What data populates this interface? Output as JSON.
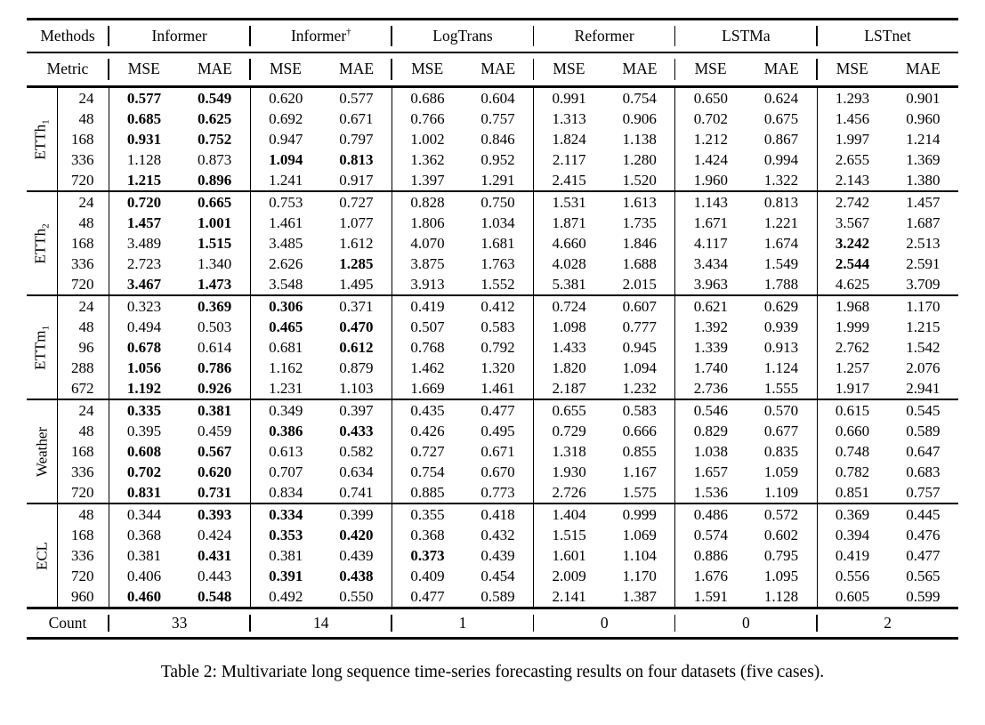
{
  "page": {
    "background": "#ffffff",
    "text_color": "#000000"
  },
  "table": {
    "caption": "Table 2: Multivariate long sequence time-series forecasting results on four datasets (five cases).",
    "header": {
      "methods_label": "Methods",
      "metric_label": "Metric",
      "metrics": [
        "MSE",
        "MAE"
      ],
      "methods": [
        {
          "name": "Informer",
          "sup": ""
        },
        {
          "name": "Informer",
          "sup": "†"
        },
        {
          "name": "LogTrans",
          "sup": ""
        },
        {
          "name": "Reformer",
          "sup": ""
        },
        {
          "name": "LSTMa",
          "sup": ""
        },
        {
          "name": "LSTnet",
          "sup": ""
        }
      ]
    },
    "groups": [
      {
        "dataset": "ETTh",
        "sub": "1",
        "rows": [
          {
            "horizon": "24",
            "values": [
              "0.577",
              "0.549",
              "0.620",
              "0.577",
              "0.686",
              "0.604",
              "0.991",
              "0.754",
              "0.650",
              "0.624",
              "1.293",
              "0.901"
            ],
            "bold": [
              0,
              1
            ]
          },
          {
            "horizon": "48",
            "values": [
              "0.685",
              "0.625",
              "0.692",
              "0.671",
              "0.766",
              "0.757",
              "1.313",
              "0.906",
              "0.702",
              "0.675",
              "1.456",
              "0.960"
            ],
            "bold": [
              0,
              1
            ]
          },
          {
            "horizon": "168",
            "values": [
              "0.931",
              "0.752",
              "0.947",
              "0.797",
              "1.002",
              "0.846",
              "1.824",
              "1.138",
              "1.212",
              "0.867",
              "1.997",
              "1.214"
            ],
            "bold": [
              0,
              1
            ]
          },
          {
            "horizon": "336",
            "values": [
              "1.128",
              "0.873",
              "1.094",
              "0.813",
              "1.362",
              "0.952",
              "2.117",
              "1.280",
              "1.424",
              "0.994",
              "2.655",
              "1.369"
            ],
            "bold": [
              2,
              3
            ]
          },
          {
            "horizon": "720",
            "values": [
              "1.215",
              "0.896",
              "1.241",
              "0.917",
              "1.397",
              "1.291",
              "2.415",
              "1.520",
              "1.960",
              "1.322",
              "2.143",
              "1.380"
            ],
            "bold": [
              0,
              1
            ]
          }
        ]
      },
      {
        "dataset": "ETTh",
        "sub": "2",
        "rows": [
          {
            "horizon": "24",
            "values": [
              "0.720",
              "0.665",
              "0.753",
              "0.727",
              "0.828",
              "0.750",
              "1.531",
              "1.613",
              "1.143",
              "0.813",
              "2.742",
              "1.457"
            ],
            "bold": [
              0,
              1
            ]
          },
          {
            "horizon": "48",
            "values": [
              "1.457",
              "1.001",
              "1.461",
              "1.077",
              "1.806",
              "1.034",
              "1.871",
              "1.735",
              "1.671",
              "1.221",
              "3.567",
              "1.687"
            ],
            "bold": [
              0,
              1
            ]
          },
          {
            "horizon": "168",
            "values": [
              "3.489",
              "1.515",
              "3.485",
              "1.612",
              "4.070",
              "1.681",
              "4.660",
              "1.846",
              "4.117",
              "1.674",
              "3.242",
              "2.513"
            ],
            "bold": [
              1,
              10
            ]
          },
          {
            "horizon": "336",
            "values": [
              "2.723",
              "1.340",
              "2.626",
              "1.285",
              "3.875",
              "1.763",
              "4.028",
              "1.688",
              "3.434",
              "1.549",
              "2.544",
              "2.591"
            ],
            "bold": [
              3,
              10
            ]
          },
          {
            "horizon": "720",
            "values": [
              "3.467",
              "1.473",
              "3.548",
              "1.495",
              "3.913",
              "1.552",
              "5.381",
              "2.015",
              "3.963",
              "1.788",
              "4.625",
              "3.709"
            ],
            "bold": [
              0,
              1
            ]
          }
        ]
      },
      {
        "dataset": "ETTm",
        "sub": "1",
        "rows": [
          {
            "horizon": "24",
            "values": [
              "0.323",
              "0.369",
              "0.306",
              "0.371",
              "0.419",
              "0.412",
              "0.724",
              "0.607",
              "0.621",
              "0.629",
              "1.968",
              "1.170"
            ],
            "bold": [
              1,
              2
            ]
          },
          {
            "horizon": "48",
            "values": [
              "0.494",
              "0.503",
              "0.465",
              "0.470",
              "0.507",
              "0.583",
              "1.098",
              "0.777",
              "1.392",
              "0.939",
              "1.999",
              "1.215"
            ],
            "bold": [
              2,
              3
            ]
          },
          {
            "horizon": "96",
            "values": [
              "0.678",
              "0.614",
              "0.681",
              "0.612",
              "0.768",
              "0.792",
              "1.433",
              "0.945",
              "1.339",
              "0.913",
              "2.762",
              "1.542"
            ],
            "bold": [
              0,
              3
            ]
          },
          {
            "horizon": "288",
            "values": [
              "1.056",
              "0.786",
              "1.162",
              "0.879",
              "1.462",
              "1.320",
              "1.820",
              "1.094",
              "1.740",
              "1.124",
              "1.257",
              "2.076"
            ],
            "bold": [
              0,
              1
            ]
          },
          {
            "horizon": "672",
            "values": [
              "1.192",
              "0.926",
              "1.231",
              "1.103",
              "1.669",
              "1.461",
              "2.187",
              "1.232",
              "2.736",
              "1.555",
              "1.917",
              "2.941"
            ],
            "bold": [
              0,
              1
            ]
          }
        ]
      },
      {
        "dataset": "Weather",
        "sub": "",
        "rows": [
          {
            "horizon": "24",
            "values": [
              "0.335",
              "0.381",
              "0.349",
              "0.397",
              "0.435",
              "0.477",
              "0.655",
              "0.583",
              "0.546",
              "0.570",
              "0.615",
              "0.545"
            ],
            "bold": [
              0,
              1
            ]
          },
          {
            "horizon": "48",
            "values": [
              "0.395",
              "0.459",
              "0.386",
              "0.433",
              "0.426",
              "0.495",
              "0.729",
              "0.666",
              "0.829",
              "0.677",
              "0.660",
              "0.589"
            ],
            "bold": [
              2,
              3
            ]
          },
          {
            "horizon": "168",
            "values": [
              "0.608",
              "0.567",
              "0.613",
              "0.582",
              "0.727",
              "0.671",
              "1.318",
              "0.855",
              "1.038",
              "0.835",
              "0.748",
              "0.647"
            ],
            "bold": [
              0,
              1
            ]
          },
          {
            "horizon": "336",
            "values": [
              "0.702",
              "0.620",
              "0.707",
              "0.634",
              "0.754",
              "0.670",
              "1.930",
              "1.167",
              "1.657",
              "1.059",
              "0.782",
              "0.683"
            ],
            "bold": [
              0,
              1
            ]
          },
          {
            "horizon": "720",
            "values": [
              "0.831",
              "0.731",
              "0.834",
              "0.741",
              "0.885",
              "0.773",
              "2.726",
              "1.575",
              "1.536",
              "1.109",
              "0.851",
              "0.757"
            ],
            "bold": [
              0,
              1
            ]
          }
        ]
      },
      {
        "dataset": "ECL",
        "sub": "",
        "rows": [
          {
            "horizon": "48",
            "values": [
              "0.344",
              "0.393",
              "0.334",
              "0.399",
              "0.355",
              "0.418",
              "1.404",
              "0.999",
              "0.486",
              "0.572",
              "0.369",
              "0.445"
            ],
            "bold": [
              1,
              2
            ]
          },
          {
            "horizon": "168",
            "values": [
              "0.368",
              "0.424",
              "0.353",
              "0.420",
              "0.368",
              "0.432",
              "1.515",
              "1.069",
              "0.574",
              "0.602",
              "0.394",
              "0.476"
            ],
            "bold": [
              2,
              3
            ]
          },
          {
            "horizon": "336",
            "values": [
              "0.381",
              "0.431",
              "0.381",
              "0.439",
              "0.373",
              "0.439",
              "1.601",
              "1.104",
              "0.886",
              "0.795",
              "0.419",
              "0.477"
            ],
            "bold": [
              1,
              4
            ]
          },
          {
            "horizon": "720",
            "values": [
              "0.406",
              "0.443",
              "0.391",
              "0.438",
              "0.409",
              "0.454",
              "2.009",
              "1.170",
              "1.676",
              "1.095",
              "0.556",
              "0.565"
            ],
            "bold": [
              2,
              3
            ]
          },
          {
            "horizon": "960",
            "values": [
              "0.460",
              "0.548",
              "0.492",
              "0.550",
              "0.477",
              "0.589",
              "2.141",
              "1.387",
              "1.591",
              "1.128",
              "0.605",
              "0.599"
            ],
            "bold": [
              0,
              1
            ]
          }
        ]
      }
    ],
    "count": {
      "label": "Count",
      "values": [
        "33",
        "14",
        "1",
        "0",
        "0",
        "2"
      ]
    }
  }
}
